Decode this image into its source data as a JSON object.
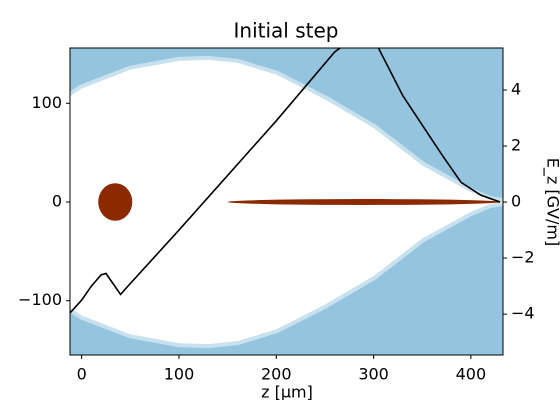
{
  "chart_data": {
    "type": "line",
    "title": "Initial step",
    "xlabel": "z [μm]",
    "y2label": "E_z [GV/m]",
    "xlim": [
      -12,
      433
    ],
    "ylim": [
      -155,
      156
    ],
    "y2lim": [
      -5.46,
      5.5
    ],
    "xticks": [
      0,
      100,
      200,
      300,
      400
    ],
    "yticks": [
      {
        "value": -100,
        "label": "−100"
      },
      0,
      100
    ],
    "y2ticks": [
      {
        "value": -4,
        "label": "−4"
      },
      {
        "value": -2,
        "label": "−2"
      },
      0,
      2,
      4
    ],
    "density": {
      "color": "#94c4de",
      "x": [
        -12,
        0,
        50,
        100,
        130,
        160,
        200,
        250,
        300,
        350,
        400,
        420,
        433
      ],
      "radius": [
        107,
        115,
        134,
        143,
        144,
        141,
        129,
        104,
        75,
        37,
        10,
        2,
        0
      ]
    },
    "bunches": {
      "color": "#8b2a00",
      "z": [
        [
          17,
          52
        ],
        [
          150,
          430
        ]
      ],
      "x": [
        [
          -19,
          19
        ],
        [
          -3,
          3
        ]
      ]
    },
    "series": [
      {
        "color": "#000000",
        "axis": "y2",
        "x": [
          -12,
          0,
          10,
          20,
          25,
          30,
          40,
          45,
          100,
          200,
          260,
          285,
          305,
          330,
          350,
          370,
          390,
          410,
          430
        ],
        "values": [
          -3.96,
          -3.5,
          -3.0,
          -2.6,
          -2.55,
          -2.8,
          -3.3,
          -3.1,
          -1.0,
          2.9,
          5.36,
          6.0,
          5.5,
          3.8,
          2.75,
          1.7,
          0.7,
          0.25,
          0.0
        ]
      }
    ]
  }
}
